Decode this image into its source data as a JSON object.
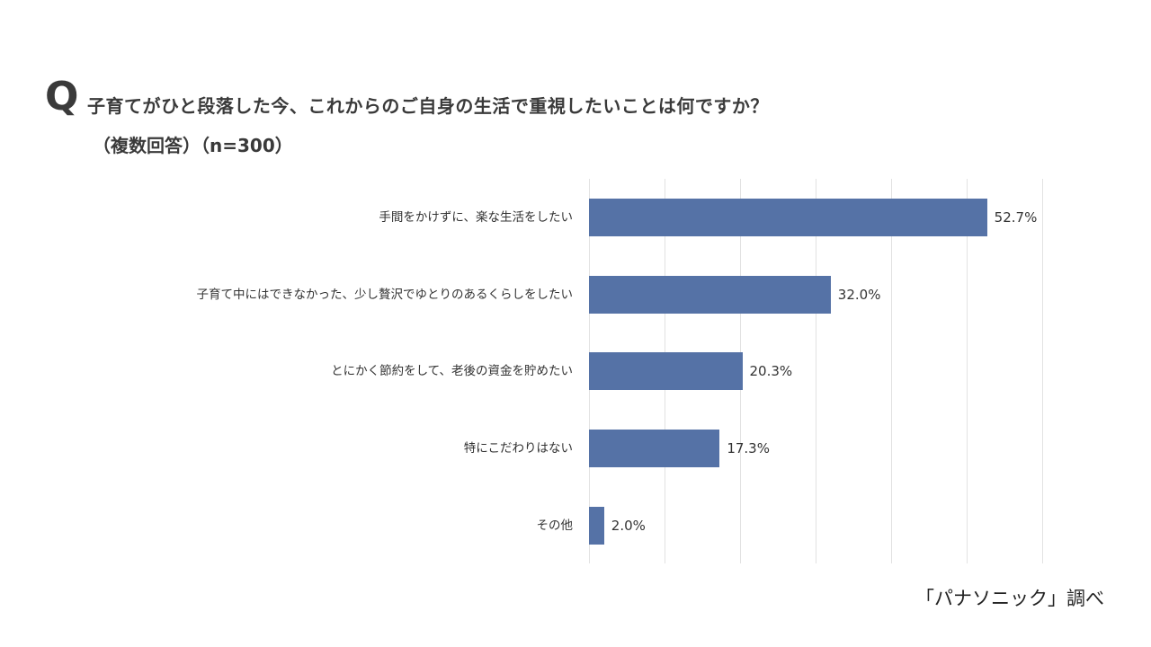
{
  "header": {
    "q_mark": "Q",
    "title": "子育てがひと段落した今、これからのご自身の生活で重視したいことは何ですか？",
    "subtitle": "（複数回答）（n=300）"
  },
  "source": "「パナソニック」調べ",
  "colors": {
    "bar": "#5572a6",
    "grid": "#e2e2e2",
    "text": "#333333"
  },
  "chart_data": {
    "type": "bar",
    "orientation": "horizontal",
    "title": "子育てがひと段落した今、これからのご自身の生活で重視したいことは何ですか？（複数回答）（n=300）",
    "categories": [
      "手間をかけずに、楽な生活をしたい",
      "子育て中にはできなかった、少し贅沢でゆとりのあるくらしをしたい",
      "とにかく節約をして、老後の資金を貯めたい",
      "特にこだわりはない",
      "その他"
    ],
    "values": [
      52.7,
      32.0,
      20.3,
      17.3,
      2.0
    ],
    "labels": [
      "52.7%",
      "32.0%",
      "20.3%",
      "17.3%",
      "2.0%"
    ],
    "xlabel": "",
    "ylabel": "",
    "xlim": [
      0,
      60
    ],
    "grid": true,
    "grid_step": 10,
    "legend": "none",
    "unit": "%"
  }
}
